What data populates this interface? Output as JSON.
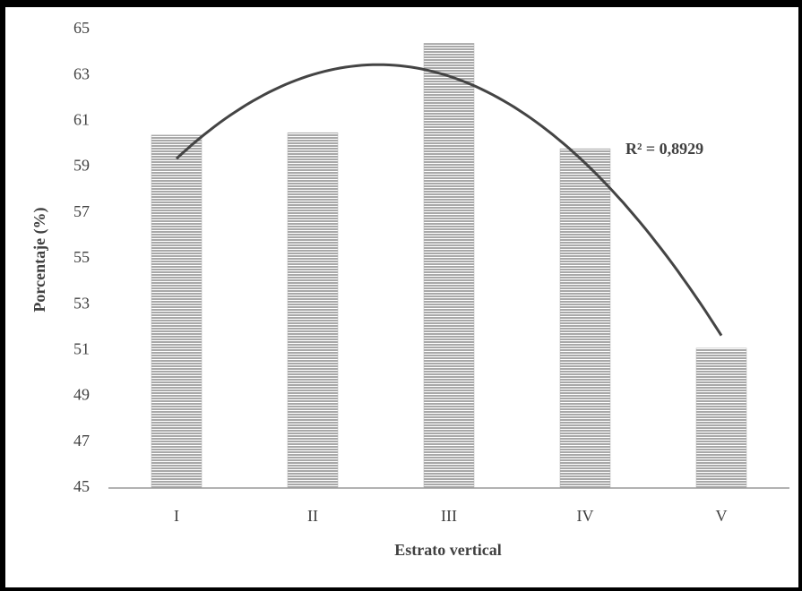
{
  "chart_data": {
    "type": "bar",
    "x_label": "Estrato vertical",
    "y_label": "Porcentaje (%)",
    "categories": [
      "I",
      "II",
      "III",
      "IV",
      "V"
    ],
    "values": [
      60.4,
      60.5,
      64.4,
      59.8,
      51.1
    ],
    "color": "#b0b0b0",
    "ylim": [
      45,
      65
    ],
    "yticks": [
      45,
      47,
      49,
      51,
      53,
      55,
      57,
      59,
      61,
      63,
      65
    ],
    "grid": false,
    "trendline": {
      "order": 2,
      "color": "#444444",
      "label": "R² = 0,8929"
    }
  }
}
